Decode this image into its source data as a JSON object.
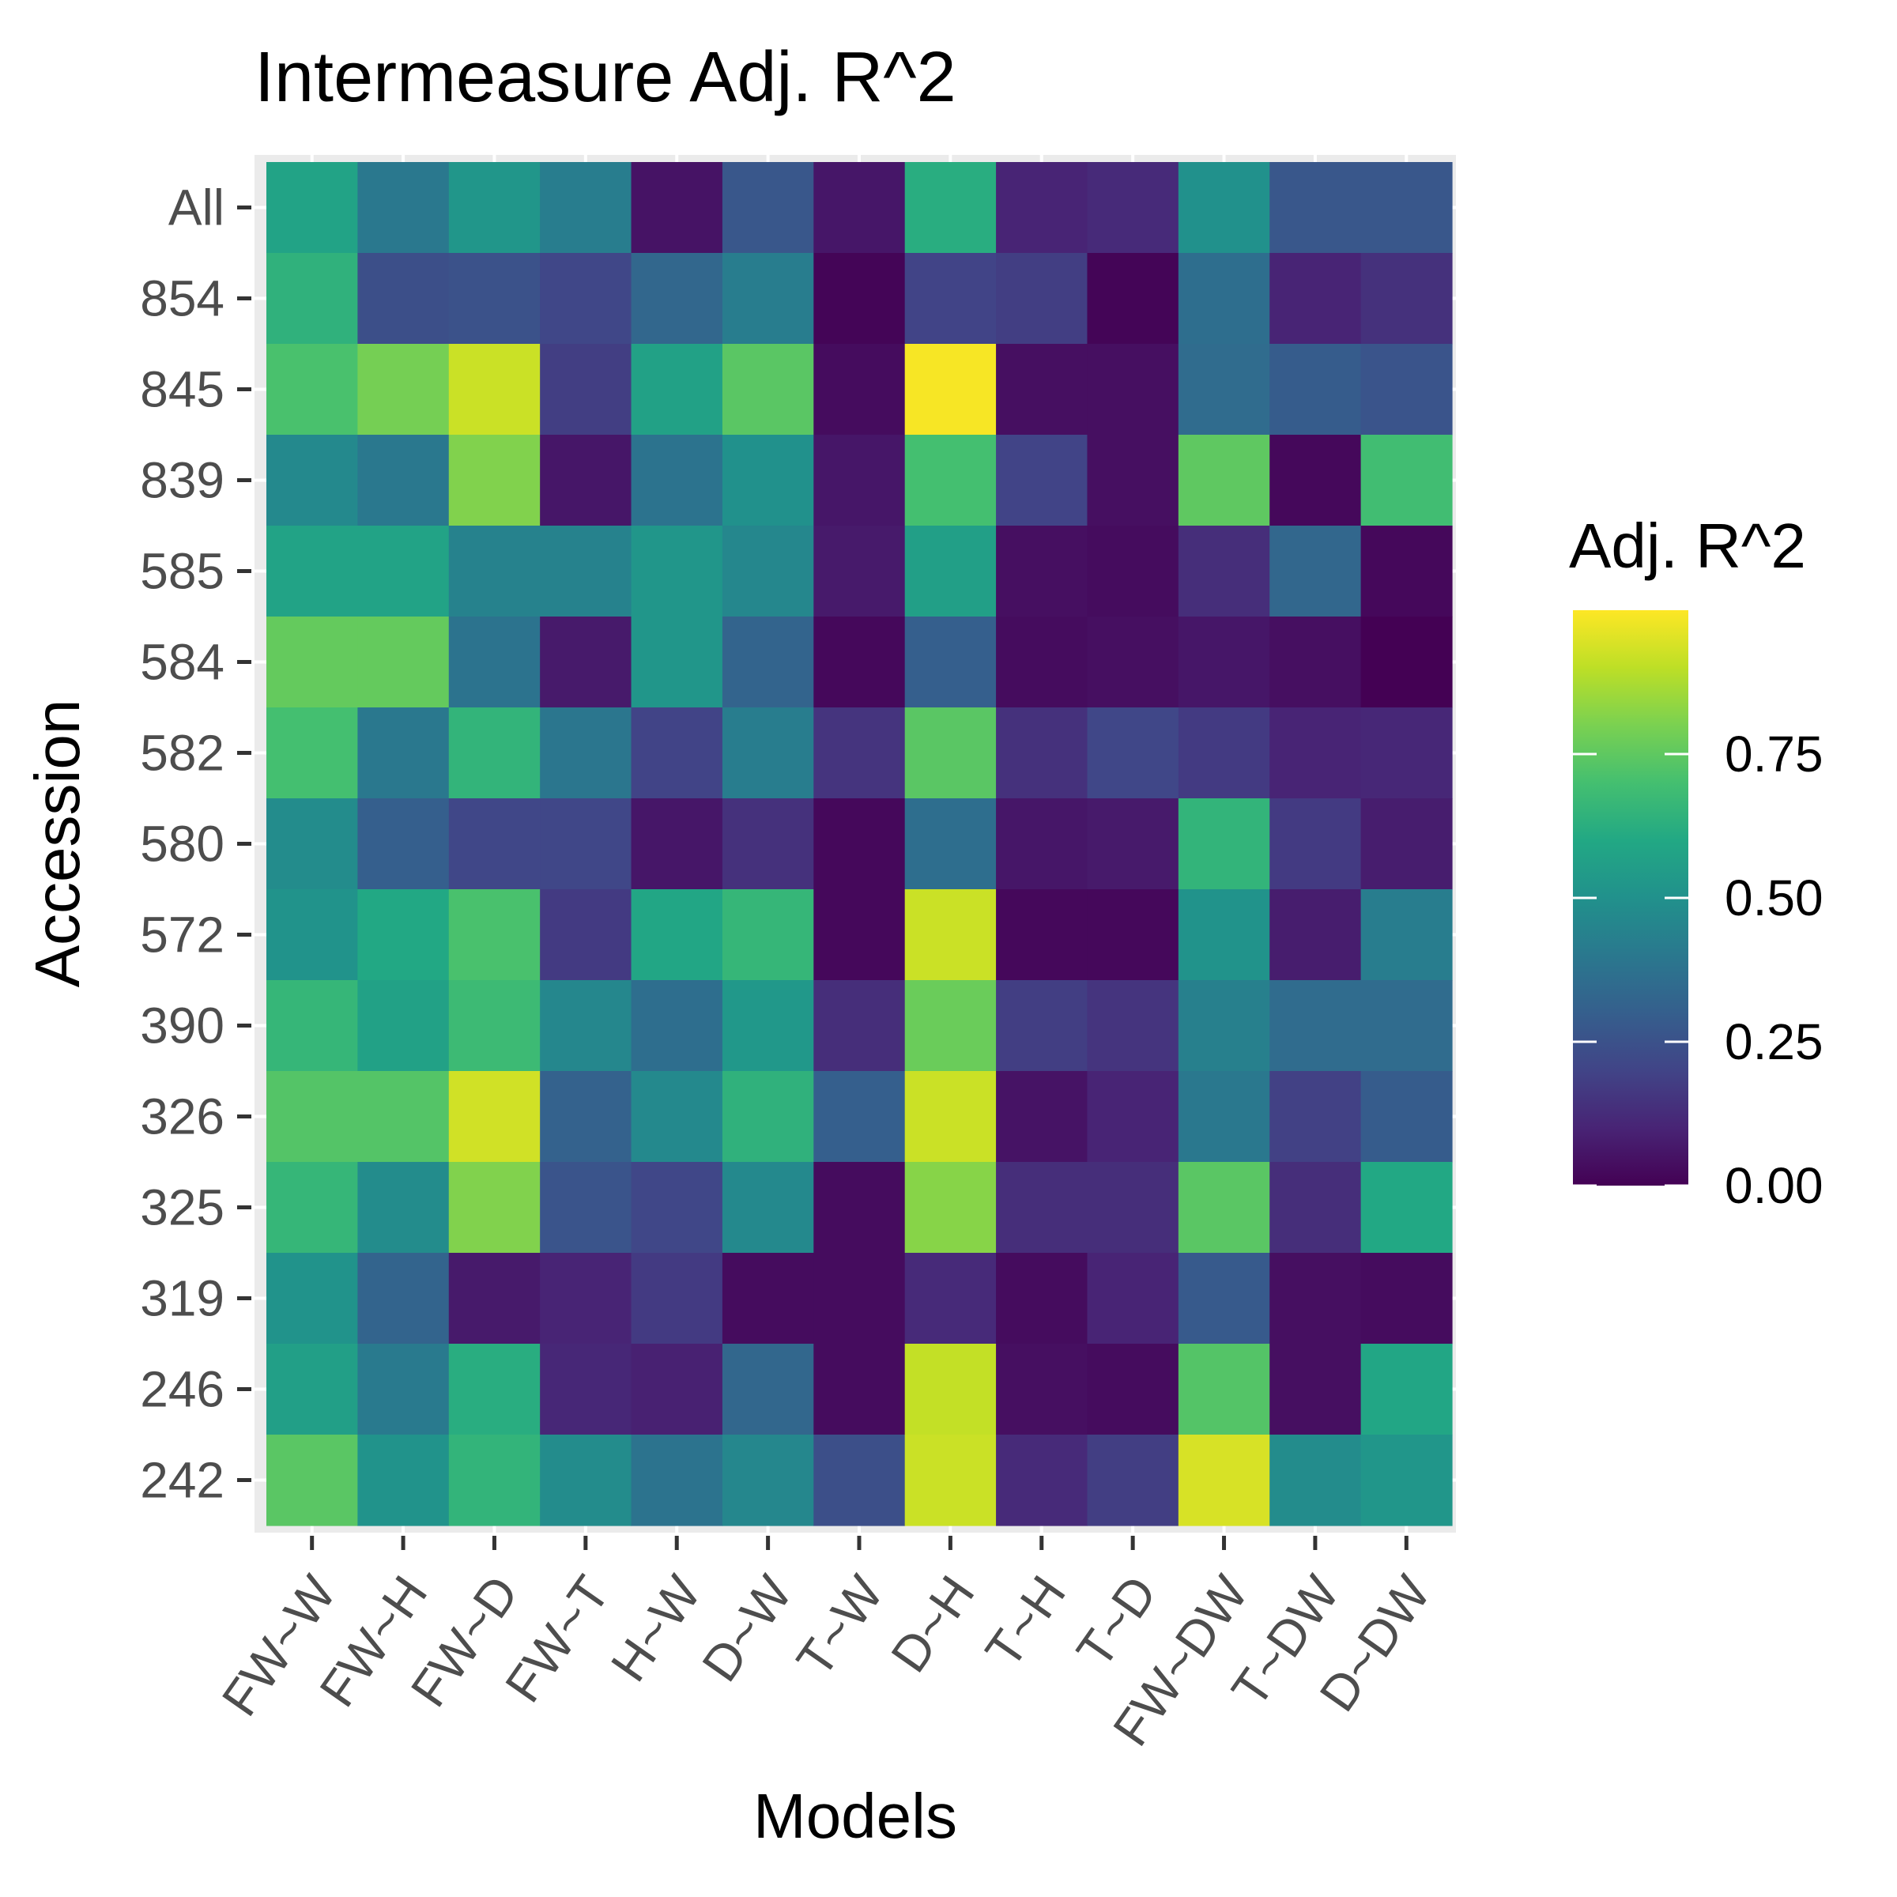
{
  "chart_data": {
    "type": "heatmap",
    "title": "Intermeasure Adj. R^2",
    "xlabel": "Models",
    "ylabel": "Accession",
    "x_categories": [
      "FW~W",
      "FW~H",
      "FW~D",
      "FW~T",
      "H~W",
      "D~W",
      "T~W",
      "D~H",
      "T~H",
      "T~D",
      "FW~DW",
      "T~DW",
      "D~DW"
    ],
    "y_categories": [
      "All",
      "854",
      "845",
      "839",
      "585",
      "584",
      "582",
      "580",
      "572",
      "390",
      "326",
      "325",
      "319",
      "246",
      "242"
    ],
    "values": [
      [
        0.58,
        0.4,
        0.52,
        0.42,
        0.05,
        0.27,
        0.06,
        0.62,
        0.1,
        0.12,
        0.5,
        0.27,
        0.27
      ],
      [
        0.64,
        0.24,
        0.25,
        0.21,
        0.33,
        0.42,
        0.01,
        0.2,
        0.18,
        0.01,
        0.36,
        0.1,
        0.14
      ],
      [
        0.71,
        0.79,
        0.92,
        0.18,
        0.57,
        0.74,
        0.03,
        0.99,
        0.04,
        0.04,
        0.35,
        0.29,
        0.26
      ],
      [
        0.47,
        0.4,
        0.81,
        0.06,
        0.38,
        0.5,
        0.06,
        0.7,
        0.2,
        0.04,
        0.75,
        0.02,
        0.69
      ],
      [
        0.58,
        0.58,
        0.44,
        0.44,
        0.52,
        0.46,
        0.07,
        0.56,
        0.04,
        0.03,
        0.13,
        0.33,
        0.02
      ],
      [
        0.76,
        0.76,
        0.38,
        0.07,
        0.52,
        0.32,
        0.02,
        0.3,
        0.03,
        0.04,
        0.06,
        0.04,
        0.0
      ],
      [
        0.7,
        0.4,
        0.65,
        0.39,
        0.2,
        0.42,
        0.15,
        0.74,
        0.14,
        0.21,
        0.17,
        0.1,
        0.11
      ],
      [
        0.48,
        0.3,
        0.21,
        0.21,
        0.06,
        0.14,
        0.02,
        0.36,
        0.06,
        0.07,
        0.65,
        0.17,
        0.08
      ],
      [
        0.51,
        0.6,
        0.71,
        0.17,
        0.59,
        0.66,
        0.02,
        0.92,
        0.02,
        0.02,
        0.51,
        0.08,
        0.42
      ],
      [
        0.66,
        0.57,
        0.68,
        0.46,
        0.36,
        0.53,
        0.13,
        0.77,
        0.18,
        0.15,
        0.43,
        0.35,
        0.35
      ],
      [
        0.73,
        0.73,
        0.93,
        0.31,
        0.47,
        0.64,
        0.3,
        0.92,
        0.05,
        0.1,
        0.4,
        0.19,
        0.29
      ],
      [
        0.66,
        0.48,
        0.81,
        0.26,
        0.21,
        0.47,
        0.03,
        0.82,
        0.13,
        0.13,
        0.74,
        0.13,
        0.6
      ],
      [
        0.51,
        0.32,
        0.07,
        0.1,
        0.17,
        0.03,
        0.03,
        0.12,
        0.03,
        0.1,
        0.28,
        0.04,
        0.03
      ],
      [
        0.56,
        0.41,
        0.62,
        0.11,
        0.09,
        0.33,
        0.03,
        0.91,
        0.04,
        0.03,
        0.73,
        0.04,
        0.59
      ],
      [
        0.74,
        0.51,
        0.65,
        0.48,
        0.38,
        0.46,
        0.24,
        0.92,
        0.12,
        0.18,
        0.94,
        0.48,
        0.52
      ]
    ],
    "scale": "viridis",
    "range": [
      0,
      1.0
    ],
    "grid": true,
    "legend": {
      "title": "Adj. R^2",
      "placement": "right",
      "ticks": [
        0.0,
        0.25,
        0.5,
        0.75
      ],
      "tick_labels": [
        "0.00",
        "0.25",
        "0.50",
        "0.75"
      ]
    }
  }
}
